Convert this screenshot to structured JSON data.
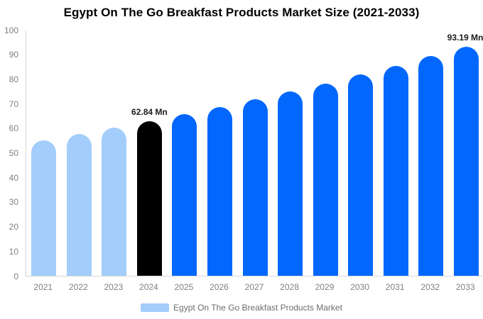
{
  "chart_data": {
    "type": "bar",
    "title": "Egypt On The Go Breakfast Products Market Size (2021-2033)",
    "categories": [
      "2021",
      "2022",
      "2023",
      "2024",
      "2025",
      "2026",
      "2027",
      "2028",
      "2029",
      "2030",
      "2031",
      "2032",
      "2033"
    ],
    "values": [
      55.0,
      57.5,
      60.2,
      62.84,
      65.65,
      68.59,
      71.66,
      74.87,
      78.22,
      81.72,
      85.38,
      89.2,
      93.19
    ],
    "values_unit": "Mn",
    "bar_roles": [
      "past",
      "past",
      "past",
      "current",
      "forecast",
      "forecast",
      "forecast",
      "forecast",
      "forecast",
      "forecast",
      "forecast",
      "forecast",
      "forecast"
    ],
    "role_colors": {
      "past": "#A3CDFA",
      "current": "#000000",
      "forecast": "#0267FC"
    },
    "annotations": [
      {
        "index": 3,
        "text": "62.84 Mn"
      },
      {
        "index": 12,
        "text": "93.19 Mn"
      }
    ],
    "xlabel": "",
    "ylabel": "",
    "ylim": [
      0,
      100
    ],
    "y_ticks": [
      0,
      10,
      20,
      30,
      40,
      50,
      60,
      70,
      80,
      90,
      100
    ],
    "grid": false,
    "legend_position": "bottom"
  },
  "legend": {
    "label": "Egypt On The Go Breakfast Products Market",
    "swatch_color": "#A3CDFA"
  },
  "colors": {
    "title_text": "#000000",
    "axis_line": "#d7d7d7",
    "tick_text": "#808080",
    "annotation_text": "#1a1a1a",
    "legend_text": "#6d6d6d",
    "background": "#ffffff"
  }
}
